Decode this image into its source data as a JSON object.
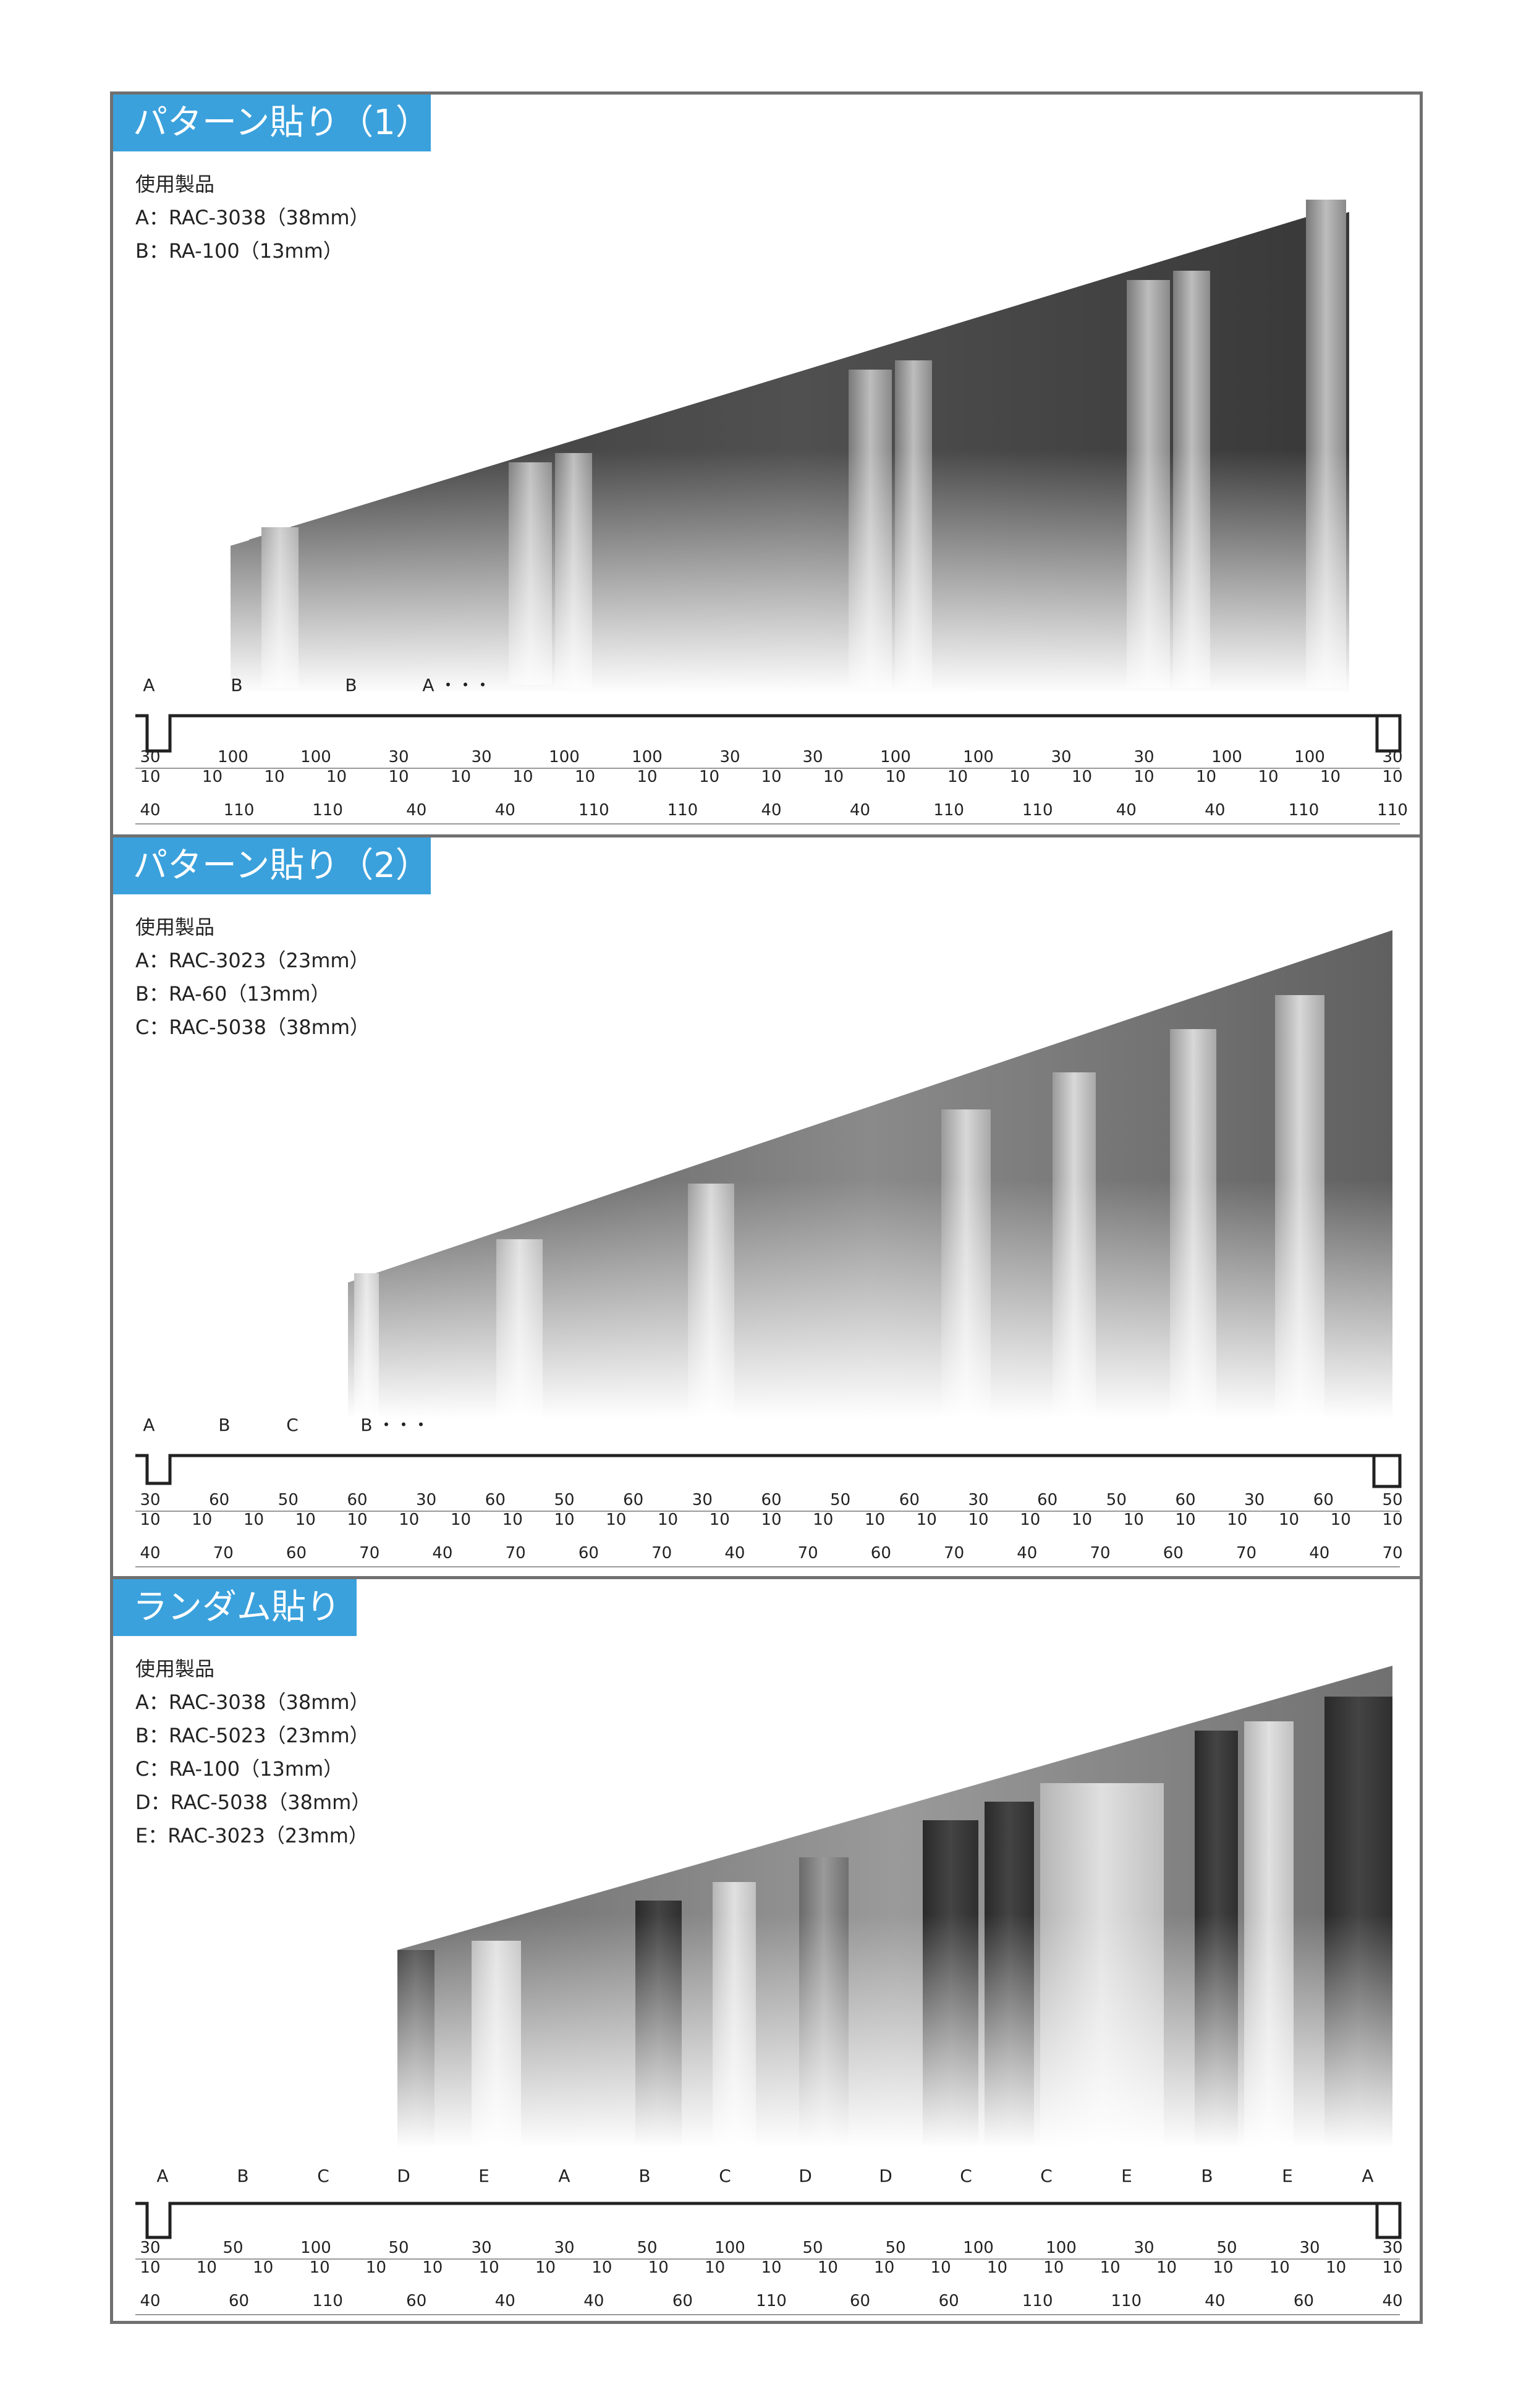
{
  "sections": [
    {
      "title": "パターン貼り（1）",
      "products_heading": "使用製品",
      "products": [
        "A：RAC-3038（38mm）",
        "B：RA-100（13mm）"
      ],
      "letters": [
        "A",
        "B",
        "B",
        "A",
        "・・・"
      ],
      "dims_row1": [
        "30",
        "100",
        "100",
        "30",
        "30",
        "100",
        "100",
        "30",
        "30",
        "100",
        "100",
        "30",
        "30",
        "100",
        "100",
        "30"
      ],
      "dims_row2": [
        "10",
        "10",
        "10",
        "10",
        "10",
        "10",
        "10",
        "10",
        "10",
        "10",
        "10",
        "10",
        "10",
        "10",
        "10",
        "10",
        "10",
        "10",
        "10",
        "10",
        "10"
      ],
      "dims_row3": [
        "40",
        "110",
        "110",
        "40",
        "40",
        "110",
        "110",
        "40",
        "40",
        "110",
        "110",
        "40",
        "40",
        "110",
        "110"
      ]
    },
    {
      "title": "パターン貼り（2）",
      "products_heading": "使用製品",
      "products": [
        "A：RAC-3023（23mm）",
        "B：RA-60（13mm）",
        "C：RAC-5038（38mm）"
      ],
      "letters": [
        "A",
        "B",
        "C",
        "B",
        "・・・"
      ],
      "dims_row1": [
        "30",
        "60",
        "50",
        "60",
        "30",
        "60",
        "50",
        "60",
        "30",
        "60",
        "50",
        "60",
        "30",
        "60",
        "50",
        "60",
        "30",
        "60",
        "50"
      ],
      "dims_row2": [
        "10",
        "10",
        "10",
        "10",
        "10",
        "10",
        "10",
        "10",
        "10",
        "10",
        "10",
        "10",
        "10",
        "10",
        "10",
        "10",
        "10",
        "10",
        "10",
        "10",
        "10",
        "10",
        "10",
        "10",
        "10"
      ],
      "dims_row3": [
        "40",
        "70",
        "60",
        "70",
        "40",
        "70",
        "60",
        "70",
        "40",
        "70",
        "60",
        "70",
        "40",
        "70",
        "60",
        "70",
        "40",
        "70"
      ]
    },
    {
      "title": "ランダム貼り",
      "products_heading": "使用製品",
      "products": [
        "A：RAC-3038（38mm）",
        "B：RAC-5023（23mm）",
        "C：RA-100（13mm）",
        "D：RAC-5038（38mm）",
        "E：RAC-3023（23mm）"
      ],
      "letters": [
        "A",
        "B",
        "C",
        "D",
        "E",
        "A",
        "B",
        "C",
        "D",
        "D",
        "C",
        "C",
        "E",
        "B",
        "E",
        "A"
      ],
      "dims_row1": [
        "30",
        "50",
        "100",
        "50",
        "30",
        "30",
        "50",
        "100",
        "50",
        "50",
        "100",
        "100",
        "30",
        "50",
        "30",
        "30"
      ],
      "dims_row2": [
        "10",
        "10",
        "10",
        "10",
        "10",
        "10",
        "10",
        "10",
        "10",
        "10",
        "10",
        "10",
        "10",
        "10",
        "10",
        "10",
        "10",
        "10",
        "10",
        "10",
        "10",
        "10",
        "10"
      ],
      "dims_row3": [
        "40",
        "60",
        "110",
        "60",
        "40",
        "40",
        "60",
        "110",
        "60",
        "60",
        "110",
        "110",
        "40",
        "60",
        "40"
      ]
    }
  ]
}
